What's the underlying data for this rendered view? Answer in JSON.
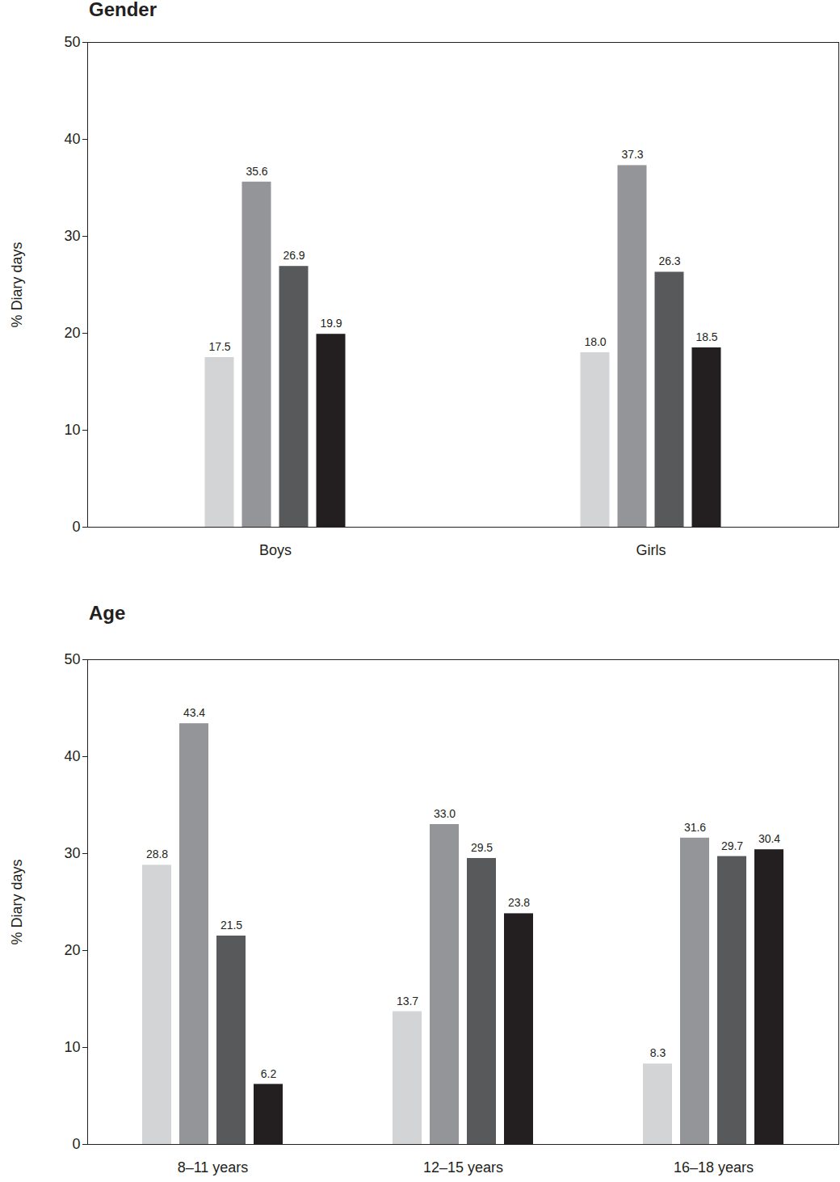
{
  "chart_data": [
    {
      "type": "bar",
      "title": "Gender",
      "y_label": "% Diary days",
      "categories": [
        "Boys",
        "Girls"
      ],
      "series": [
        {
          "color": "#d3d4d6",
          "values": [
            17.5,
            18.0
          ],
          "value_labels": [
            "17.5",
            "18.0"
          ]
        },
        {
          "color": "#939598",
          "values": [
            35.6,
            37.3
          ],
          "value_labels": [
            "35.6",
            "37.3"
          ]
        },
        {
          "color": "#58595b",
          "values": [
            26.9,
            26.3
          ],
          "value_labels": [
            "26.9",
            "26.3"
          ]
        },
        {
          "color": "#231f20",
          "values": [
            19.9,
            18.5
          ],
          "value_labels": [
            "19.9",
            "18.5"
          ]
        }
      ],
      "ylim": [
        0,
        50
      ],
      "yticks": [
        0,
        10,
        20,
        30,
        40,
        50
      ],
      "grid": false,
      "data_labels": true
    },
    {
      "type": "bar",
      "title": "Age",
      "y_label": "% Diary days",
      "categories": [
        "8–11 years",
        "12–15 years",
        "16–18 years"
      ],
      "series": [
        {
          "color": "#d3d4d6",
          "values": [
            28.8,
            13.7,
            8.3
          ],
          "value_labels": [
            "28.8",
            "13.7",
            "8.3"
          ]
        },
        {
          "color": "#939598",
          "values": [
            43.4,
            33.0,
            31.6
          ],
          "value_labels": [
            "43.4",
            "33.0",
            "31.6"
          ]
        },
        {
          "color": "#58595b",
          "values": [
            21.5,
            29.5,
            29.7
          ],
          "value_labels": [
            "21.5",
            "29.5",
            "29.7"
          ]
        },
        {
          "color": "#231f20",
          "values": [
            6.2,
            23.8,
            30.4
          ],
          "value_labels": [
            "6.2",
            "23.8",
            "30.4"
          ]
        }
      ],
      "ylim": [
        0,
        50
      ],
      "yticks": [
        0,
        10,
        20,
        30,
        40,
        50
      ],
      "grid": false,
      "data_labels": true
    }
  ]
}
